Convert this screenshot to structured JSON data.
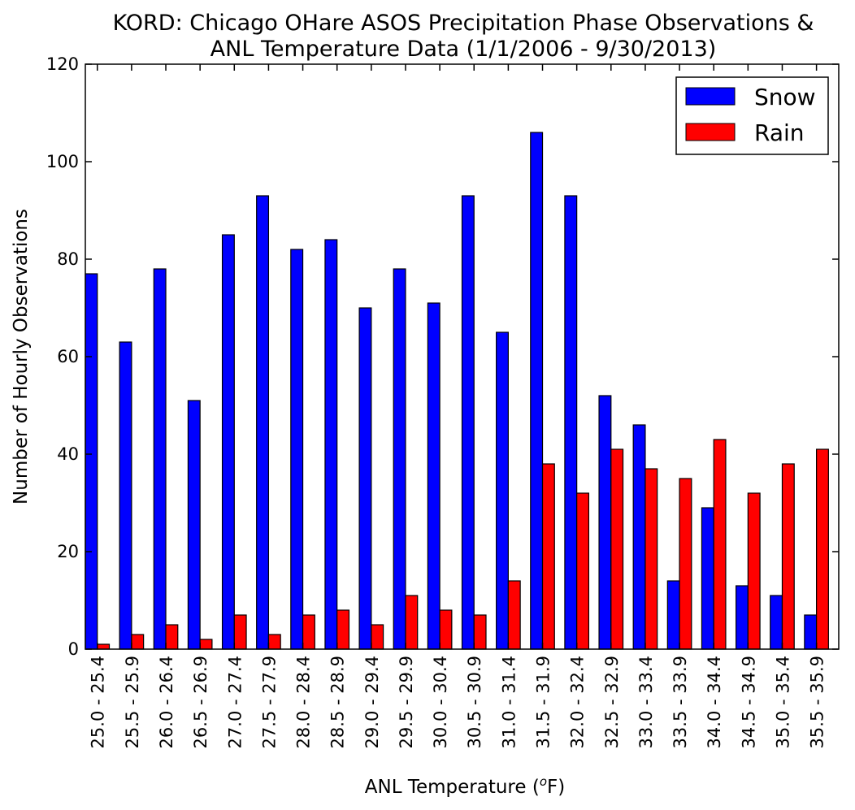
{
  "chart_data": {
    "type": "bar",
    "title": "KORD: Chicago OHare ASOS Precipitation Phase Observations &",
    "subtitle": "ANL Temperature Data (1/1/2006 - 9/30/2013)",
    "xlabel_prefix": "ANL Temperature (",
    "xlabel_superscript": "o",
    "xlabel_suffix": "F)",
    "ylabel": "Number of Hourly Observations",
    "ylim": [
      0,
      120
    ],
    "yticks": [
      "0",
      "20",
      "40",
      "60",
      "80",
      "100",
      "120"
    ],
    "grid": false,
    "legend_position": "top-right",
    "categories": [
      "25.0 - 25.4",
      "25.5 - 25.9",
      "26.0 - 26.4",
      "26.5 - 26.9",
      "27.0 - 27.4",
      "27.5 - 27.9",
      "28.0 - 28.4",
      "28.5 - 28.9",
      "29.0 - 29.4",
      "29.5 - 29.9",
      "30.0 - 30.4",
      "30.5 - 30.9",
      "31.0 - 31.4",
      "31.5 - 31.9",
      "32.0 - 32.4",
      "32.5 - 32.9",
      "33.0 - 33.4",
      "33.5 - 33.9",
      "34.0 - 34.4",
      "34.5 - 34.9",
      "35.0 - 35.4",
      "35.5 - 35.9"
    ],
    "series": [
      {
        "name": "Snow",
        "color": "#0000ff",
        "values": [
          77,
          63,
          78,
          51,
          85,
          93,
          82,
          84,
          70,
          78,
          71,
          93,
          65,
          106,
          93,
          52,
          46,
          14,
          29,
          13,
          11,
          7
        ]
      },
      {
        "name": "Rain",
        "color": "#ff0000",
        "values": [
          1,
          3,
          5,
          2,
          7,
          3,
          7,
          8,
          5,
          11,
          8,
          7,
          14,
          38,
          32,
          41,
          37,
          35,
          43,
          32,
          38,
          41
        ]
      }
    ]
  }
}
